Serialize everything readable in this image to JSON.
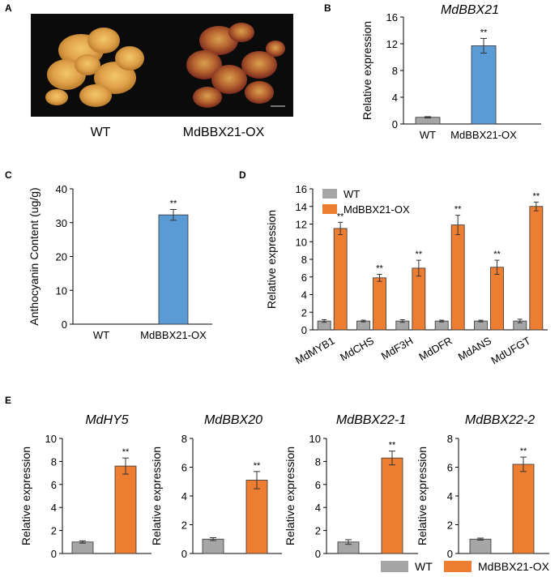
{
  "panels": {
    "A": {
      "label": "A",
      "captions": [
        "WT",
        "MdBBX21-OX"
      ]
    },
    "B": {
      "label": "B"
    },
    "C": {
      "label": "C"
    },
    "D": {
      "label": "D"
    },
    "E": {
      "label": "E"
    }
  },
  "colors": {
    "wt": "#a6a6a6",
    "ox_blue": "#5b9bd5",
    "ox_orange": "#ed7d31"
  },
  "legend_E": {
    "wt": "WT",
    "ox": "MdBBX21-OX"
  },
  "chart_data": [
    {
      "id": "B",
      "type": "bar",
      "title": "MdBBX21",
      "xlabel": "",
      "ylabel": "Relative expression",
      "categories": [
        "WT",
        "MdBBX21-OX"
      ],
      "values": [
        1.0,
        11.7
      ],
      "errors": [
        0.1,
        1.1
      ],
      "annotations": [
        "",
        "**"
      ],
      "ylim": [
        0,
        16
      ],
      "yticks": [
        0,
        4,
        8,
        12,
        16
      ],
      "grid": false
    },
    {
      "id": "C",
      "type": "bar",
      "title": "",
      "xlabel": "",
      "ylabel": "Anthocyanin Content (ug/g)",
      "categories": [
        "WT",
        "MdBBX21-OX"
      ],
      "values": [
        0,
        32.3
      ],
      "errors": [
        0,
        1.6
      ],
      "annotations": [
        "",
        "**"
      ],
      "ylim": [
        0,
        40
      ],
      "yticks": [
        0,
        10,
        20,
        30,
        40
      ],
      "grid": false
    },
    {
      "id": "D",
      "type": "bar",
      "title": "",
      "xlabel": "",
      "ylabel": "Relative expression",
      "categories": [
        "MdMYB1",
        "MdCHS",
        "MdF3H",
        "MdDFR",
        "MdANS",
        "MdUFGT"
      ],
      "series": [
        {
          "name": "WT",
          "values": [
            1.0,
            1.0,
            1.0,
            1.0,
            1.0,
            1.0
          ],
          "errors": [
            0.15,
            0.1,
            0.15,
            0.1,
            0.1,
            0.2
          ]
        },
        {
          "name": "MdBBX21-OX",
          "values": [
            11.5,
            5.9,
            7.0,
            11.9,
            7.1,
            14.0
          ],
          "errors": [
            0.7,
            0.4,
            0.9,
            1.1,
            0.8,
            0.5
          ]
        }
      ],
      "annotations": [
        "**",
        "**",
        "**",
        "**",
        "**",
        "**"
      ],
      "legend": "top-left",
      "ylim": [
        0,
        16
      ],
      "yticks": [
        0,
        2,
        4,
        6,
        8,
        10,
        12,
        14,
        16
      ],
      "grid": false
    },
    {
      "id": "E1",
      "type": "bar",
      "title": "MdHY5",
      "ylabel": "Relative expression",
      "categories": [
        "WT",
        "MdBBX21-OX"
      ],
      "values": [
        1.0,
        7.6
      ],
      "errors": [
        0.1,
        0.7
      ],
      "annotations": [
        "",
        "**"
      ],
      "ylim": [
        0,
        10
      ],
      "yticks": [
        0,
        2,
        4,
        6,
        8,
        10
      ],
      "grid": false
    },
    {
      "id": "E2",
      "type": "bar",
      "title": "MdBBX20",
      "ylabel": "Relative expression",
      "categories": [
        "WT",
        "MdBBX21-OX"
      ],
      "values": [
        1.0,
        5.1
      ],
      "errors": [
        0.1,
        0.6
      ],
      "annotations": [
        "",
        "**"
      ],
      "ylim": [
        0,
        8
      ],
      "yticks": [
        0,
        2,
        4,
        6,
        8
      ],
      "grid": false
    },
    {
      "id": "E3",
      "type": "bar",
      "title": "MdBBX22-1",
      "ylabel": "Relative expression",
      "categories": [
        "WT",
        "MdBBX21-OX"
      ],
      "values": [
        1.0,
        8.3
      ],
      "errors": [
        0.2,
        0.6
      ],
      "annotations": [
        "",
        "**"
      ],
      "ylim": [
        0,
        10
      ],
      "yticks": [
        0,
        2,
        4,
        6,
        8,
        10
      ],
      "grid": false
    },
    {
      "id": "E4",
      "type": "bar",
      "title": "MdBBX22-2",
      "ylabel": "Relative expression",
      "categories": [
        "WT",
        "MdBBX21-OX"
      ],
      "values": [
        1.0,
        6.2
      ],
      "errors": [
        0.07,
        0.5
      ],
      "annotations": [
        "",
        "**"
      ],
      "ylim": [
        0,
        8
      ],
      "yticks": [
        0,
        2,
        4,
        6,
        8
      ],
      "grid": false
    }
  ]
}
